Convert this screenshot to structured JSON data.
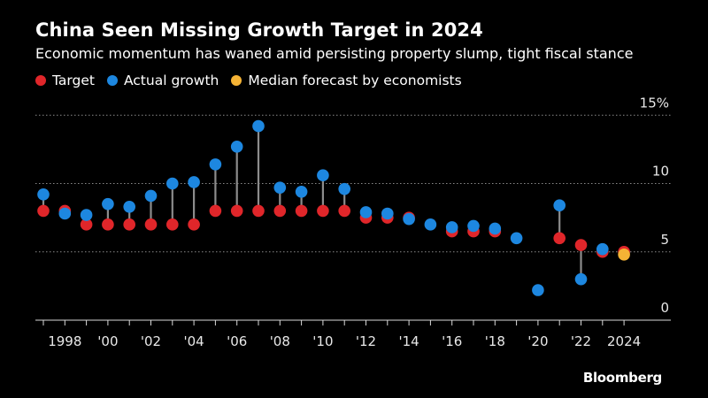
{
  "title": "China Seen Missing Growth Target in 2024",
  "subtitle": "Economic momentum has waned amid persisting property slump, tight fiscal stance",
  "legend": [
    {
      "label": "Target",
      "color": "#e0262a"
    },
    {
      "label": "Actual growth",
      "color": "#1d87e0"
    },
    {
      "label": "Median forecast by economists",
      "color": "#f5b335"
    }
  ],
  "brand": "Bloomberg",
  "chart_data": {
    "type": "scatter",
    "title": "China Seen Missing Growth Target in 2024",
    "xlabel": "",
    "ylabel": "",
    "ylim": [
      0,
      15
    ],
    "xlim": [
      1997,
      2025
    ],
    "y_ticks": [
      {
        "value": 0,
        "label": "0"
      },
      {
        "value": 5,
        "label": "5"
      },
      {
        "value": 10,
        "label": "10"
      },
      {
        "value": 15,
        "label": "15%"
      }
    ],
    "x_ticks": [
      {
        "value": 1998,
        "label": "1998"
      },
      {
        "value": 2000,
        "label": "'00"
      },
      {
        "value": 2002,
        "label": "'02"
      },
      {
        "value": 2004,
        "label": "'04"
      },
      {
        "value": 2006,
        "label": "'06"
      },
      {
        "value": 2008,
        "label": "'08"
      },
      {
        "value": 2010,
        "label": "'10"
      },
      {
        "value": 2012,
        "label": "'12"
      },
      {
        "value": 2014,
        "label": "'14"
      },
      {
        "value": 2016,
        "label": "'16"
      },
      {
        "value": 2018,
        "label": "'18"
      },
      {
        "value": 2020,
        "label": "'20"
      },
      {
        "value": 2022,
        "label": "'22"
      },
      {
        "value": 2024,
        "label": "2024"
      }
    ],
    "series": [
      {
        "name": "Target",
        "color": "#e0262a",
        "points": [
          [
            1997,
            8.0
          ],
          [
            1998,
            8.0
          ],
          [
            1999,
            7.0
          ],
          [
            2000,
            7.0
          ],
          [
            2001,
            7.0
          ],
          [
            2002,
            7.0
          ],
          [
            2003,
            7.0
          ],
          [
            2004,
            7.0
          ],
          [
            2005,
            8.0
          ],
          [
            2006,
            8.0
          ],
          [
            2007,
            8.0
          ],
          [
            2008,
            8.0
          ],
          [
            2009,
            8.0
          ],
          [
            2010,
            8.0
          ],
          [
            2011,
            8.0
          ],
          [
            2012,
            7.5
          ],
          [
            2013,
            7.5
          ],
          [
            2014,
            7.5
          ],
          [
            2016,
            6.5
          ],
          [
            2017,
            6.5
          ],
          [
            2018,
            6.5
          ],
          [
            2021,
            6.0
          ],
          [
            2022,
            5.5
          ],
          [
            2023,
            5.0
          ],
          [
            2024,
            5.0
          ]
        ]
      },
      {
        "name": "Actual growth",
        "color": "#1d87e0",
        "points": [
          [
            1997,
            9.2
          ],
          [
            1998,
            7.8
          ],
          [
            1999,
            7.7
          ],
          [
            2000,
            8.5
          ],
          [
            2001,
            8.3
          ],
          [
            2002,
            9.1
          ],
          [
            2003,
            10.0
          ],
          [
            2004,
            10.1
          ],
          [
            2005,
            11.4
          ],
          [
            2006,
            12.7
          ],
          [
            2007,
            14.2
          ],
          [
            2008,
            9.7
          ],
          [
            2009,
            9.4
          ],
          [
            2010,
            10.6
          ],
          [
            2011,
            9.6
          ],
          [
            2012,
            7.9
          ],
          [
            2013,
            7.8
          ],
          [
            2014,
            7.4
          ],
          [
            2015,
            7.0
          ],
          [
            2016,
            6.8
          ],
          [
            2017,
            6.9
          ],
          [
            2018,
            6.7
          ],
          [
            2019,
            6.0
          ],
          [
            2020,
            2.2
          ],
          [
            2021,
            8.4
          ],
          [
            2022,
            3.0
          ],
          [
            2023,
            5.2
          ]
        ]
      },
      {
        "name": "Median forecast by economists",
        "color": "#f5b335",
        "points": [
          [
            2024,
            4.8
          ]
        ]
      }
    ]
  }
}
